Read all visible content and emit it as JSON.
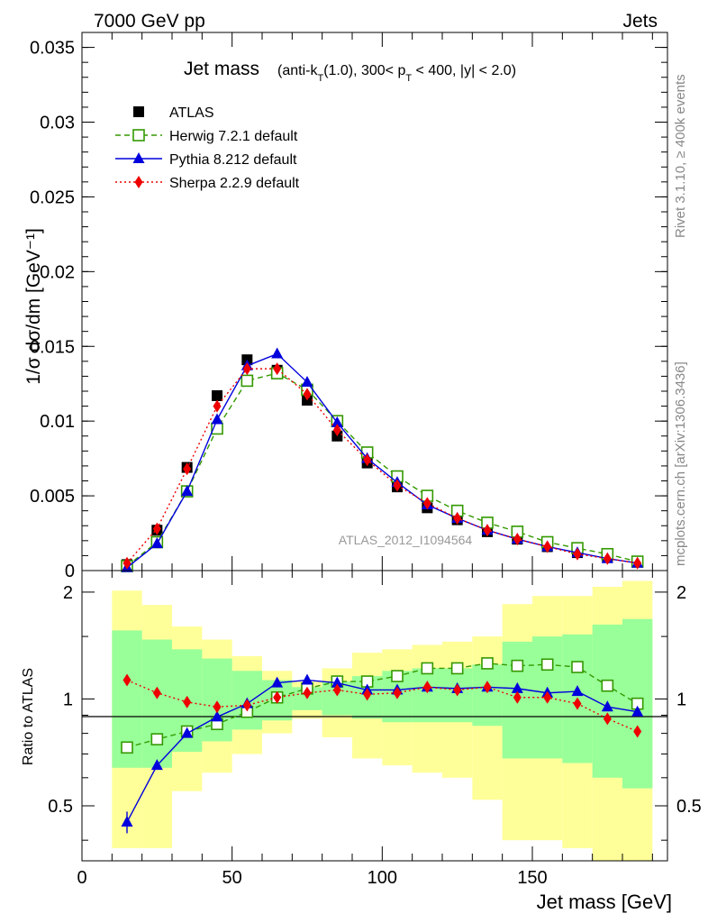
{
  "header": {
    "left": "7000 GeV pp",
    "right": "Jets"
  },
  "side_labels": {
    "rivet": "Rivet 3.1.10, ≥ 400k events",
    "mcplots": "mcplots.cern.ch [arXiv:1306.3436]"
  },
  "chart_data": [
    {
      "type": "scatter",
      "title_main": "Jet mass",
      "title_detail": "(anti-k_T(1.0), 300< p_T < 400, |y| < 2.0)",
      "ylabel": "1/σ dσ/dm [GeV⁻¹]",
      "watermark": "ATLAS_2012_I1094564",
      "xlim": [
        0,
        195
      ],
      "ylim": [
        0,
        0.036
      ],
      "y_ticks": [
        "0",
        "0.005",
        "0.01",
        "0.015",
        "0.02",
        "0.025",
        "0.03",
        "0.035"
      ],
      "legend_position": "top-left",
      "x": [
        15,
        25,
        35,
        45,
        55,
        65,
        75,
        85,
        95,
        105,
        115,
        125,
        135,
        145,
        155,
        165,
        175,
        185
      ],
      "series": [
        {
          "name": "ATLAS",
          "color": "#000000",
          "marker": "filled-square",
          "line": "none",
          "values": [
            0.0004,
            0.0027,
            0.0069,
            0.0117,
            0.0141,
            0.0134,
            0.0114,
            0.009,
            0.0072,
            0.0056,
            0.0042,
            0.0034,
            0.0026,
            0.0021,
            0.0016,
            0.0012,
            0.0009,
            0.0006
          ]
        },
        {
          "name": "Herwig 7.2.1 default",
          "color": "#339900",
          "marker": "open-square",
          "line": "dashed",
          "values": [
            0.0003,
            0.0019,
            0.0053,
            0.0095,
            0.0127,
            0.0132,
            0.0121,
            0.01,
            0.0079,
            0.0063,
            0.005,
            0.004,
            0.0032,
            0.0026,
            0.0019,
            0.0015,
            0.0011,
            0.0006
          ]
        },
        {
          "name": "Pythia 8.212 default",
          "color": "#0000dd",
          "marker": "filled-triangle",
          "line": "solid",
          "values": [
            0.0002,
            0.0018,
            0.0053,
            0.0101,
            0.0137,
            0.0145,
            0.0126,
            0.0099,
            0.0075,
            0.0059,
            0.0044,
            0.0035,
            0.0027,
            0.0021,
            0.0016,
            0.0012,
            0.0008,
            0.0005
          ]
        },
        {
          "name": "Sherpa 2.2.9 default",
          "color": "#ee0000",
          "marker": "filled-diamond",
          "line": "dotted",
          "values": [
            0.0005,
            0.0028,
            0.0068,
            0.011,
            0.0135,
            0.0135,
            0.0118,
            0.0094,
            0.0074,
            0.0057,
            0.0045,
            0.0035,
            0.0027,
            0.0021,
            0.0016,
            0.0011,
            0.0008,
            0.0005
          ]
        }
      ]
    },
    {
      "type": "scatter",
      "ylabel": "Ratio to ATLAS",
      "xlabel": "Jet mass [GeV]",
      "xlim": [
        0,
        195
      ],
      "ylim": [
        0.35,
        2.3
      ],
      "x_ticks": [
        "0",
        "50",
        "100",
        "150"
      ],
      "y_ticks": [
        "0.5",
        "1",
        "2"
      ],
      "reference_line": 1,
      "bins": [
        [
          10,
          20
        ],
        [
          20,
          30
        ],
        [
          30,
          40
        ],
        [
          40,
          50
        ],
        [
          50,
          60
        ],
        [
          60,
          70
        ],
        [
          70,
          80
        ],
        [
          80,
          90
        ],
        [
          90,
          100
        ],
        [
          100,
          110
        ],
        [
          110,
          120
        ],
        [
          120,
          130
        ],
        [
          130,
          140
        ],
        [
          140,
          150
        ],
        [
          150,
          160
        ],
        [
          160,
          170
        ],
        [
          170,
          180
        ],
        [
          180,
          190
        ]
      ],
      "band_inner": {
        "color": "#99ff99",
        "low": [
          0.64,
          0.64,
          0.71,
          0.76,
          0.82,
          0.87,
          0.93,
          0.9,
          0.88,
          0.86,
          0.86,
          0.86,
          0.84,
          0.68,
          0.68,
          0.66,
          0.6,
          0.56
        ],
        "high": [
          1.56,
          1.47,
          1.38,
          1.3,
          1.2,
          1.13,
          1.08,
          1.12,
          1.16,
          1.2,
          1.22,
          1.22,
          1.25,
          1.45,
          1.5,
          1.52,
          1.62,
          1.68
        ]
      },
      "band_outer": {
        "color": "#ffff99",
        "low": [
          0.38,
          0.38,
          0.55,
          0.62,
          0.7,
          0.8,
          0.88,
          0.78,
          0.68,
          0.65,
          0.62,
          0.6,
          0.52,
          0.4,
          0.4,
          0.38,
          0.33,
          0.3
        ],
        "high": [
          2.02,
          1.84,
          1.6,
          1.47,
          1.32,
          1.2,
          1.12,
          1.22,
          1.35,
          1.38,
          1.42,
          1.45,
          1.5,
          1.85,
          1.95,
          1.95,
          2.07,
          2.15
        ]
      },
      "series": [
        {
          "name": "Herwig 7.2.1 default",
          "color": "#339900",
          "marker": "open-square",
          "line": "dashed",
          "values": [
            0.73,
            0.77,
            0.81,
            0.85,
            0.92,
            1.01,
            1.07,
            1.12,
            1.12,
            1.16,
            1.22,
            1.22,
            1.26,
            1.24,
            1.25,
            1.23,
            1.09,
            0.97
          ]
        },
        {
          "name": "Pythia 8.212 default",
          "color": "#0000dd",
          "marker": "filled-triangle",
          "line": "solid",
          "values": [
            0.45,
            0.65,
            0.8,
            0.89,
            0.97,
            1.11,
            1.13,
            1.11,
            1.06,
            1.06,
            1.08,
            1.07,
            1.08,
            1.07,
            1.04,
            1.05,
            0.95,
            0.92
          ]
        },
        {
          "name": "Sherpa 2.2.9 default",
          "color": "#ee0000",
          "marker": "filled-diamond",
          "line": "dotted",
          "values": [
            1.13,
            1.04,
            0.98,
            0.95,
            0.96,
            1.01,
            1.04,
            1.06,
            1.03,
            1.04,
            1.08,
            1.06,
            1.08,
            1.01,
            1.01,
            0.97,
            0.88,
            0.81
          ]
        }
      ]
    }
  ]
}
